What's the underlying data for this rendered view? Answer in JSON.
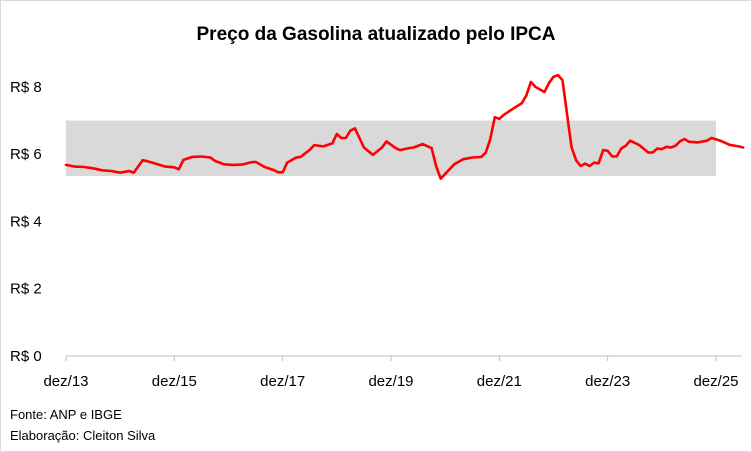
{
  "chart_data": {
    "type": "line",
    "title": "Preço da Gasolina atualizado pelo IPCA",
    "xlabel": "",
    "ylabel": "",
    "y_tick_labels": [
      "R$ 0",
      "R$ 2",
      "R$ 4",
      "R$ 6",
      "R$ 8"
    ],
    "y_ticks": [
      0,
      2,
      4,
      6,
      8
    ],
    "ylim": [
      0,
      8.8
    ],
    "x_tick_labels": [
      "dez/13",
      "dez/15",
      "dez/17",
      "dez/19",
      "dez/21",
      "dez/23",
      "dez/25"
    ],
    "xlim": [
      "2013-12",
      "2025-12"
    ],
    "grid": false,
    "band": {
      "low": 5.35,
      "high": 7.0,
      "color": "#d9d9d9"
    },
    "series": [
      {
        "color": "#ff0000",
        "points": [
          [
            "2013-12",
            5.68
          ],
          [
            "2014-02",
            5.63
          ],
          [
            "2014-04",
            5.62
          ],
          [
            "2014-06",
            5.58
          ],
          [
            "2014-08",
            5.52
          ],
          [
            "2014-10",
            5.5
          ],
          [
            "2014-12",
            5.45
          ],
          [
            "2015-02",
            5.5
          ],
          [
            "2015-03",
            5.45
          ],
          [
            "2015-05",
            5.82
          ],
          [
            "2015-06",
            5.79
          ],
          [
            "2015-08",
            5.71
          ],
          [
            "2015-10",
            5.63
          ],
          [
            "2015-12",
            5.61
          ],
          [
            "2016-01",
            5.55
          ],
          [
            "2016-02",
            5.83
          ],
          [
            "2016-04",
            5.92
          ],
          [
            "2016-06",
            5.93
          ],
          [
            "2016-08",
            5.9
          ],
          [
            "2016-09",
            5.8
          ],
          [
            "2016-11",
            5.7
          ],
          [
            "2017-01",
            5.68
          ],
          [
            "2017-03",
            5.69
          ],
          [
            "2017-05",
            5.76
          ],
          [
            "2017-06",
            5.77
          ],
          [
            "2017-08",
            5.62
          ],
          [
            "2017-10",
            5.53
          ],
          [
            "2017-11",
            5.46
          ],
          [
            "2017-12",
            5.46
          ],
          [
            "2018-01",
            5.75
          ],
          [
            "2018-03",
            5.9
          ],
          [
            "2018-04",
            5.92
          ],
          [
            "2018-06",
            6.13
          ],
          [
            "2018-07",
            6.27
          ],
          [
            "2018-09",
            6.23
          ],
          [
            "2018-11",
            6.32
          ],
          [
            "2018-12",
            6.6
          ],
          [
            "2019-01",
            6.48
          ],
          [
            "2019-02",
            6.48
          ],
          [
            "2019-03",
            6.7
          ],
          [
            "2019-04",
            6.77
          ],
          [
            "2019-06",
            6.2
          ],
          [
            "2019-08",
            5.98
          ],
          [
            "2019-10",
            6.2
          ],
          [
            "2019-11",
            6.38
          ],
          [
            "2020-01",
            6.18
          ],
          [
            "2020-02",
            6.12
          ],
          [
            "2020-04",
            6.18
          ],
          [
            "2020-05",
            6.2
          ],
          [
            "2020-07",
            6.3
          ],
          [
            "2020-09",
            6.18
          ],
          [
            "2020-10",
            5.65
          ],
          [
            "2020-11",
            5.27
          ],
          [
            "2021-02",
            5.7
          ],
          [
            "2021-04",
            5.85
          ],
          [
            "2021-06",
            5.9
          ],
          [
            "2021-08",
            5.92
          ],
          [
            "2021-09",
            6.05
          ],
          [
            "2021-10",
            6.45
          ],
          [
            "2021-11",
            7.1
          ],
          [
            "2021-12",
            7.05
          ],
          [
            "2022-01",
            7.17
          ],
          [
            "2022-03",
            7.35
          ],
          [
            "2022-05",
            7.52
          ],
          [
            "2022-06",
            7.75
          ],
          [
            "2022-07",
            8.15
          ],
          [
            "2022-08",
            8.0
          ],
          [
            "2022-10",
            7.85
          ],
          [
            "2022-11",
            8.12
          ],
          [
            "2022-12",
            8.3
          ],
          [
            "2023-01",
            8.35
          ],
          [
            "2023-02",
            8.2
          ],
          [
            "2023-03",
            7.2
          ],
          [
            "2023-04",
            6.2
          ],
          [
            "2023-05",
            5.82
          ],
          [
            "2023-06",
            5.65
          ],
          [
            "2023-07",
            5.72
          ],
          [
            "2023-08",
            5.65
          ],
          [
            "2023-09",
            5.75
          ],
          [
            "2023-10",
            5.73
          ],
          [
            "2023-11",
            6.12
          ],
          [
            "2023-12",
            6.1
          ],
          [
            "2024-01",
            5.93
          ],
          [
            "2024-02",
            5.93
          ],
          [
            "2024-03",
            6.17
          ],
          [
            "2024-04",
            6.25
          ],
          [
            "2024-05",
            6.4
          ],
          [
            "2024-07",
            6.27
          ],
          [
            "2024-09",
            6.05
          ],
          [
            "2024-10",
            6.05
          ],
          [
            "2024-11",
            6.17
          ],
          [
            "2024-12",
            6.15
          ],
          [
            "2025-01",
            6.22
          ],
          [
            "2025-02",
            6.2
          ],
          [
            "2025-03",
            6.25
          ],
          [
            "2025-04",
            6.38
          ],
          [
            "2025-05",
            6.45
          ],
          [
            "2025-06",
            6.37
          ],
          [
            "2025-08",
            6.35
          ],
          [
            "2025-10",
            6.4
          ],
          [
            "2025-11",
            6.48
          ],
          [
            "2026-01",
            6.4
          ],
          [
            "2026-03",
            6.28
          ],
          [
            "2026-05",
            6.23
          ],
          [
            "2026-06",
            6.2
          ]
        ]
      }
    ]
  },
  "footnotes": {
    "source": "Fonte: ANP e IBGE",
    "author": "Elaboração: Cleiton Silva"
  }
}
